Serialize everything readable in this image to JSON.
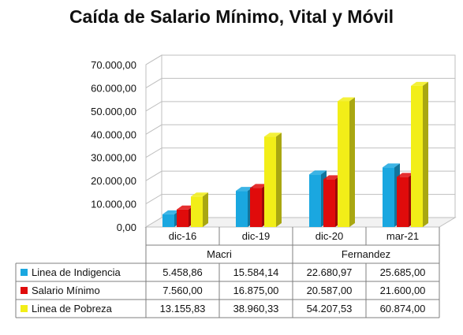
{
  "chart_data": {
    "type": "bar",
    "title": "Caída de Salario Mínimo, Vital y Móvil",
    "categories": [
      "dic-16",
      "dic-19",
      "dic-20",
      "mar-21"
    ],
    "groups": [
      {
        "label": "Macri",
        "categories": [
          "dic-16",
          "dic-19"
        ]
      },
      {
        "label": "Fernandez",
        "categories": [
          "dic-20",
          "mar-21"
        ]
      }
    ],
    "series": [
      {
        "name": "Linea de Indigencia",
        "color": "#1aa7e0",
        "values": [
          5458.86,
          15584.14,
          22680.97,
          25685.0
        ],
        "labels": [
          "5.458,86",
          "15.584,14",
          "22.680,97",
          "25.685,00"
        ]
      },
      {
        "name": "Salario Mínimo",
        "color": "#e00b0b",
        "values": [
          7560.0,
          16875.0,
          20587.0,
          21600.0
        ],
        "labels": [
          "7.560,00",
          "16.875,00",
          "20.587,00",
          "21.600,00"
        ]
      },
      {
        "name": "Linea de Pobreza",
        "color": "#f2ee18",
        "values": [
          13155.83,
          38960.33,
          54207.53,
          60874.0
        ],
        "labels": [
          "13.155,83",
          "38.960,33",
          "54.207,53",
          "60.874,00"
        ]
      }
    ],
    "yticks": [
      {
        "value": 0,
        "label": "0,00"
      },
      {
        "value": 10000,
        "label": "10.000,00"
      },
      {
        "value": 20000,
        "label": "20.000,00"
      },
      {
        "value": 30000,
        "label": "30.000,00"
      },
      {
        "value": 40000,
        "label": "40.000,00"
      },
      {
        "value": 50000,
        "label": "50.000,00"
      },
      {
        "value": 60000,
        "label": "60.000,00"
      },
      {
        "value": 70000,
        "label": "70.000,00"
      }
    ],
    "ylim": [
      0,
      70000
    ],
    "grid": true,
    "legend": "data-table-below"
  }
}
